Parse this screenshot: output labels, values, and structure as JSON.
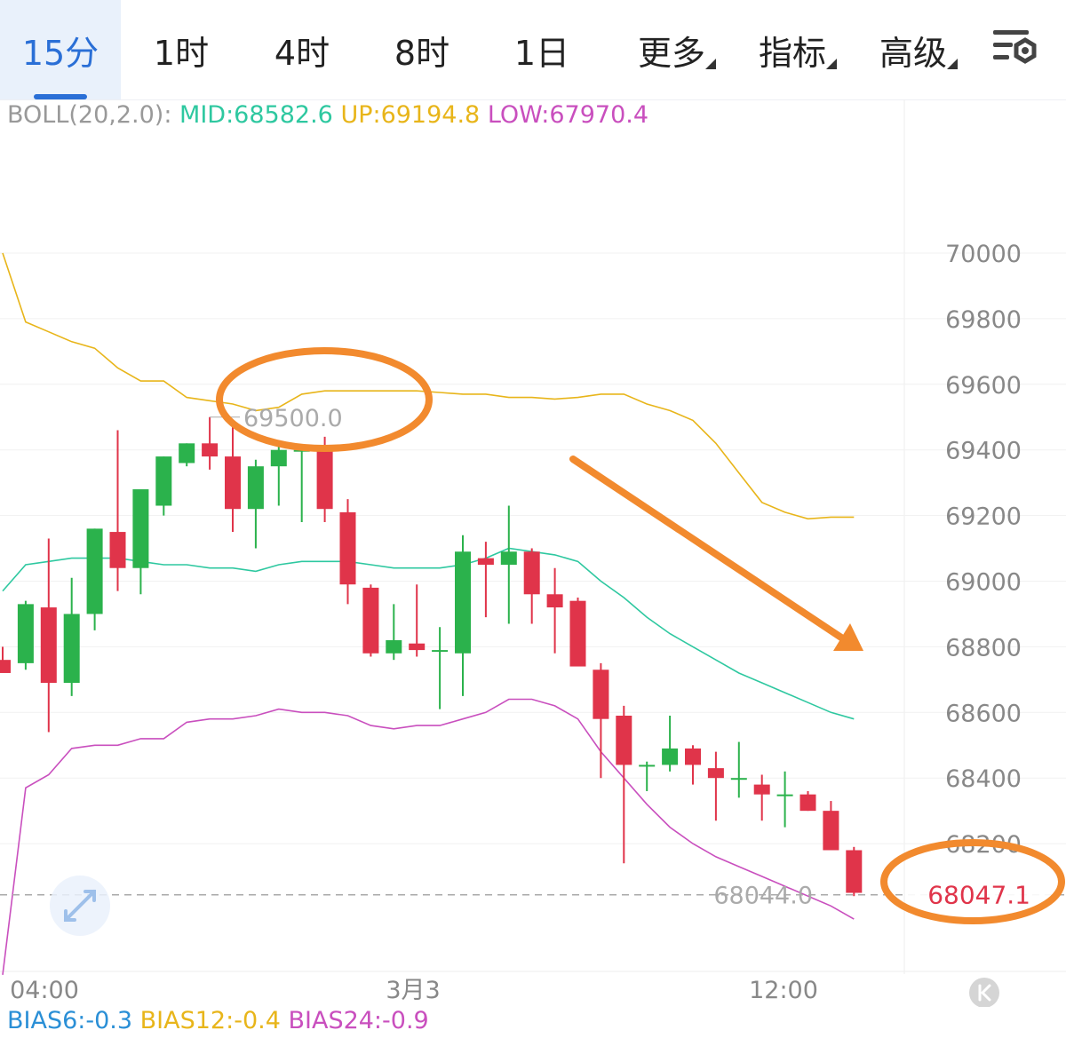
{
  "tabs": [
    {
      "label": "15分",
      "active": true
    },
    {
      "label": "1时"
    },
    {
      "label": "4时"
    },
    {
      "label": "8时"
    },
    {
      "label": "1日"
    },
    {
      "label": "更多",
      "dropdown": true
    },
    {
      "label": "指标",
      "dropdown": true
    },
    {
      "label": "高级",
      "dropdown": true
    }
  ],
  "settings_icon": "chart-settings-icon",
  "colors": {
    "up": "#2bb24c",
    "down": "#e0344a",
    "mid": "#2ec8a0",
    "upper": "#e8b51a",
    "lower": "#c94fbe",
    "annotation": "#f28a2e",
    "axis_text": "#888888",
    "price_tag": "#e0344a"
  },
  "boll_legend": {
    "name": "BOLL(20,2.0):",
    "mid": "MID:68582.6",
    "up": "UP:69194.8",
    "low": "LOW:67970.4"
  },
  "bias_legend": {
    "bias6": "BIAS6:-0.3",
    "bias12": "BIAS12:-0.4",
    "bias24": "BIAS24:-0.9"
  },
  "chart_data": {
    "type": "candlestick",
    "interval": "15分",
    "y_axis": {
      "ticks": [
        70000,
        69800,
        69600,
        69400,
        69200,
        69000,
        68800,
        68600,
        68400,
        68200
      ],
      "ylim": [
        67850,
        70200
      ]
    },
    "x_axis": {
      "labels": [
        {
          "text": "04:00",
          "index": 1
        },
        {
          "text": "3月3",
          "index": 17
        },
        {
          "text": "12:00",
          "index": 33
        }
      ]
    },
    "candles": [
      {
        "o": 68760,
        "h": 68800,
        "l": 68730,
        "c": 68720
      },
      {
        "o": 68750,
        "h": 68940,
        "l": 68730,
        "c": 68930
      },
      {
        "o": 68920,
        "h": 69130,
        "l": 68540,
        "c": 68690
      },
      {
        "o": 68690,
        "h": 69010,
        "l": 68650,
        "c": 68900
      },
      {
        "o": 68900,
        "h": 69160,
        "l": 68850,
        "c": 69160
      },
      {
        "o": 69150,
        "h": 69460,
        "l": 68970,
        "c": 69040
      },
      {
        "o": 69040,
        "h": 69260,
        "l": 68960,
        "c": 69280
      },
      {
        "o": 69230,
        "h": 69380,
        "l": 69200,
        "c": 69380
      },
      {
        "o": 69360,
        "h": 69420,
        "l": 69350,
        "c": 69420
      },
      {
        "o": 69420,
        "h": 69500,
        "l": 69340,
        "c": 69380
      },
      {
        "o": 69380,
        "h": 69480,
        "l": 69150,
        "c": 69220
      },
      {
        "o": 69220,
        "h": 69370,
        "l": 69100,
        "c": 69350
      },
      {
        "o": 69350,
        "h": 69410,
        "l": 69230,
        "c": 69400
      },
      {
        "o": 69400,
        "h": 69410,
        "l": 69180,
        "c": 69400
      },
      {
        "o": 69400,
        "h": 69440,
        "l": 69180,
        "c": 69220
      },
      {
        "o": 69210,
        "h": 69250,
        "l": 68930,
        "c": 68990
      },
      {
        "o": 68980,
        "h": 68990,
        "l": 68770,
        "c": 68780
      },
      {
        "o": 68780,
        "h": 68930,
        "l": 68760,
        "c": 68820
      },
      {
        "o": 68810,
        "h": 68990,
        "l": 68770,
        "c": 68790
      },
      {
        "o": 68790,
        "h": 68860,
        "l": 68610,
        "c": 68790
      },
      {
        "o": 68780,
        "h": 69140,
        "l": 68650,
        "c": 69090
      },
      {
        "o": 69070,
        "h": 69120,
        "l": 68890,
        "c": 69050
      },
      {
        "o": 69050,
        "h": 69230,
        "l": 68870,
        "c": 69090
      },
      {
        "o": 69090,
        "h": 69100,
        "l": 68870,
        "c": 68960
      },
      {
        "o": 68960,
        "h": 69040,
        "l": 68780,
        "c": 68920
      },
      {
        "o": 68940,
        "h": 68950,
        "l": 68750,
        "c": 68740
      },
      {
        "o": 68730,
        "h": 68750,
        "l": 68400,
        "c": 68580
      },
      {
        "o": 68590,
        "h": 68620,
        "l": 68140,
        "c": 68440
      },
      {
        "o": 68440,
        "h": 68450,
        "l": 68360,
        "c": 68440
      },
      {
        "o": 68440,
        "h": 68590,
        "l": 68420,
        "c": 68490
      },
      {
        "o": 68490,
        "h": 68500,
        "l": 68380,
        "c": 68440
      },
      {
        "o": 68430,
        "h": 68480,
        "l": 68270,
        "c": 68400
      },
      {
        "o": 68400,
        "h": 68510,
        "l": 68340,
        "c": 68400
      },
      {
        "o": 68380,
        "h": 68410,
        "l": 68270,
        "c": 68350
      },
      {
        "o": 68350,
        "h": 68420,
        "l": 68250,
        "c": 68350
      },
      {
        "o": 68350,
        "h": 68360,
        "l": 68300,
        "c": 68300
      },
      {
        "o": 68300,
        "h": 68330,
        "l": 68190,
        "c": 68180
      },
      {
        "o": 68180,
        "h": 68190,
        "l": 68040,
        "c": 68050
      }
    ],
    "boll_upper": [
      70000,
      69790,
      69760,
      69730,
      69710,
      69650,
      69610,
      69610,
      69560,
      69550,
      69540,
      69520,
      69530,
      69570,
      69580,
      69580,
      69580,
      69580,
      69580,
      69575,
      69570,
      69570,
      69560,
      69560,
      69555,
      69560,
      69570,
      69570,
      69540,
      69520,
      69490,
      69420,
      69330,
      69240,
      69210,
      69190,
      69195,
      69195
    ],
    "boll_mid": [
      68970,
      69050,
      69060,
      69070,
      69070,
      69070,
      69060,
      69050,
      69050,
      69040,
      69040,
      69030,
      69050,
      69060,
      69060,
      69060,
      69050,
      69040,
      69040,
      69040,
      69050,
      69070,
      69100,
      69090,
      69080,
      69060,
      69000,
      68950,
      68890,
      68840,
      68800,
      68760,
      68720,
      68690,
      68660,
      68630,
      68600,
      68580
    ],
    "boll_lower": [
      67800,
      68370,
      68410,
      68490,
      68500,
      68500,
      68520,
      68520,
      68570,
      68580,
      68580,
      68590,
      68610,
      68600,
      68600,
      68590,
      68560,
      68550,
      68560,
      68560,
      68580,
      68600,
      68640,
      68640,
      68620,
      68580,
      68480,
      68400,
      68320,
      68250,
      68200,
      68160,
      68130,
      68100,
      68070,
      68040,
      68010,
      67970
    ],
    "max_label": "69500.0",
    "min_label": "68044.0",
    "current_price": "68047.1",
    "annotations": [
      "orange-ellipse-high",
      "orange-ellipse-price",
      "orange-down-arrow"
    ]
  }
}
